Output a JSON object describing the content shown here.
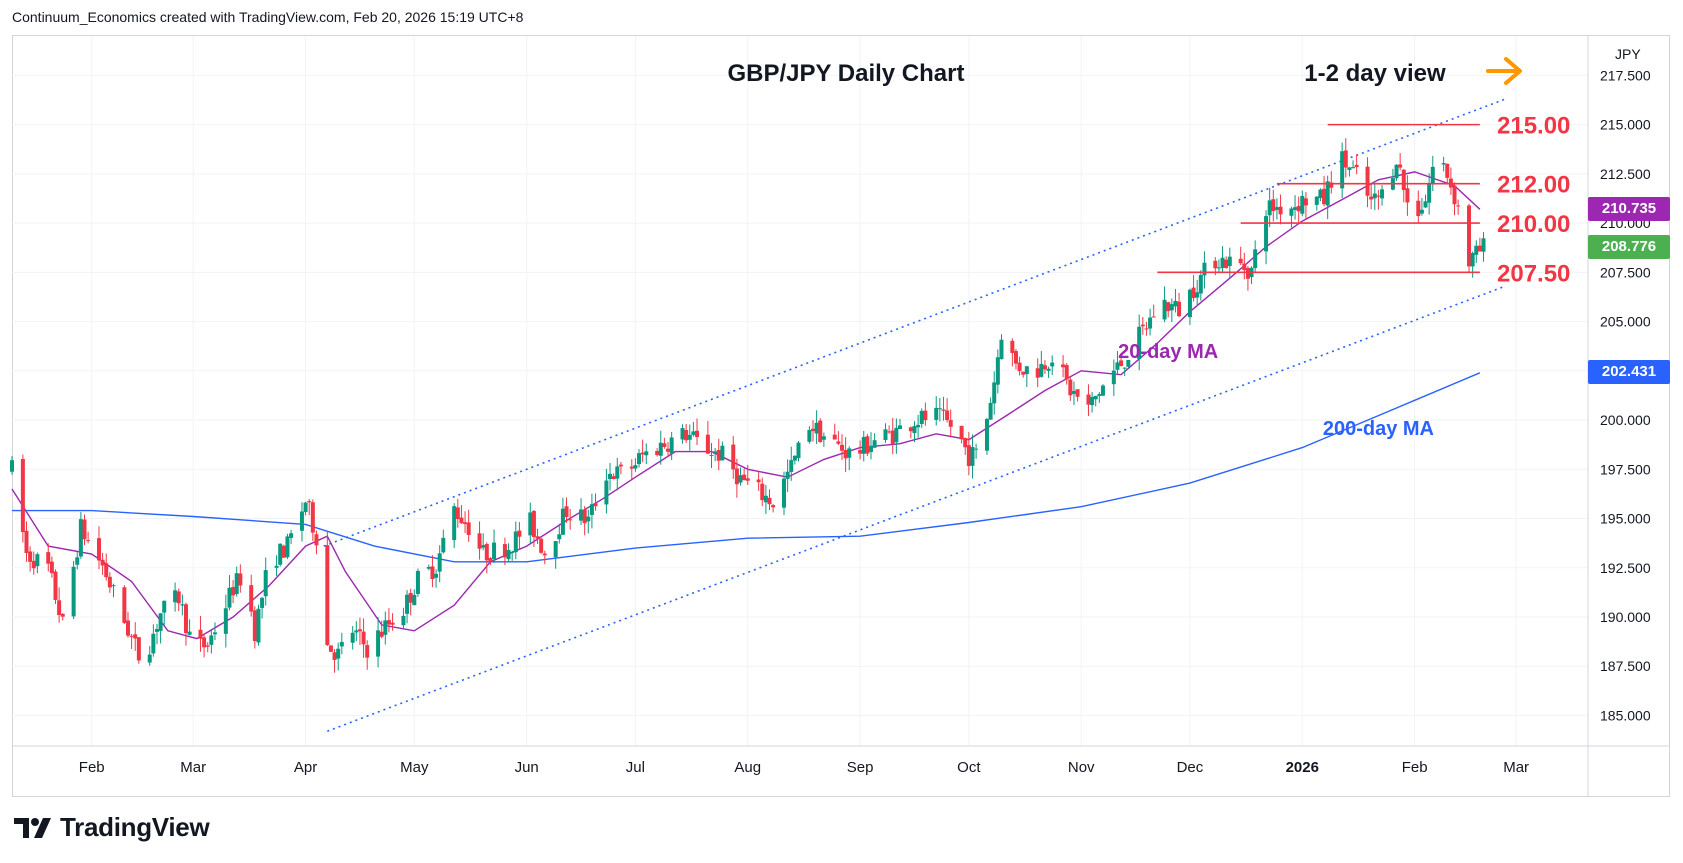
{
  "header": {
    "text": "Continuum_Economics created with TradingView.com, Feb 20, 2026 15:19 UTC+8"
  },
  "brand": {
    "name": "TradingView"
  },
  "currency": "JPY",
  "colors": {
    "up": "#089981",
    "down": "#f23645",
    "ma20": "#9c27b0",
    "ma200": "#2962ff",
    "level": "#f23645",
    "channel": "#2962ff",
    "arrow": "#ff9800",
    "last_price": "#4caf50"
  },
  "chart_data": {
    "type": "candlestick",
    "title": "GBP/JPY Daily Chart",
    "view_label": "1-2 day view",
    "x_ticks": [
      "Feb",
      "Mar",
      "Apr",
      "May",
      "Jun",
      "Jul",
      "Aug",
      "Sep",
      "Oct",
      "Nov",
      "Dec",
      "2026",
      "Feb",
      "Mar"
    ],
    "y_ticks": [
      "185.000",
      "187.500",
      "190.000",
      "192.500",
      "195.000",
      "197.500",
      "200.000",
      "202.500",
      "205.000",
      "207.500",
      "210.000",
      "212.500",
      "215.000",
      "217.500"
    ],
    "y_range": [
      183.5,
      219.5
    ],
    "x_range": [
      "2025-01-10",
      "2026-03-20"
    ],
    "levels": [
      {
        "label": "215.00",
        "value": 215.0,
        "from": "2026-01-08",
        "to": "2026-02-19"
      },
      {
        "label": "212.00",
        "value": 212.0,
        "from": "2025-12-25",
        "to": "2026-02-19"
      },
      {
        "label": "210.00",
        "value": 210.0,
        "from": "2025-12-15",
        "to": "2026-02-19"
      },
      {
        "label": "207.50",
        "value": 207.5,
        "from": "2025-11-22",
        "to": "2026-02-19"
      }
    ],
    "channel": {
      "upper": [
        [
          "2025-04-06",
          193.6
        ],
        [
          "2026-02-26",
          216.3
        ]
      ],
      "lower": [
        [
          "2025-04-07",
          184.2
        ],
        [
          "2026-02-26",
          206.8
        ]
      ]
    },
    "price_labels": [
      {
        "name": "20-day MA value",
        "value": "210.735",
        "y": 210.735
      },
      {
        "name": "last price",
        "value": "208.776",
        "y": 208.776
      },
      {
        "name": "200-day MA value",
        "value": "202.431",
        "y": 202.431
      }
    ],
    "annotations": [
      {
        "text": "20-day MA",
        "date": "2025-11-25",
        "y": 203.5
      },
      {
        "text": "200-day MA",
        "date": "2026-01-22",
        "y": 199.6
      }
    ],
    "series": [
      {
        "name": "20-day MA",
        "points": [
          [
            "2025-01-10",
            196.5
          ],
          [
            "2025-01-20",
            193.6
          ],
          [
            "2025-02-01",
            193.2
          ],
          [
            "2025-02-12",
            191.8
          ],
          [
            "2025-02-22",
            189.3
          ],
          [
            "2025-03-02",
            188.9
          ],
          [
            "2025-03-12",
            190.0
          ],
          [
            "2025-03-22",
            191.6
          ],
          [
            "2025-04-01",
            193.6
          ],
          [
            "2025-04-07",
            194.1
          ],
          [
            "2025-04-12",
            192.3
          ],
          [
            "2025-04-22",
            189.6
          ],
          [
            "2025-05-01",
            189.3
          ],
          [
            "2025-05-12",
            190.6
          ],
          [
            "2025-05-22",
            192.8
          ],
          [
            "2025-06-01",
            193.6
          ],
          [
            "2025-06-12",
            194.9
          ],
          [
            "2025-06-22",
            196.0
          ],
          [
            "2025-07-01",
            197.1
          ],
          [
            "2025-07-12",
            198.4
          ],
          [
            "2025-07-22",
            198.4
          ],
          [
            "2025-08-01",
            197.5
          ],
          [
            "2025-08-12",
            197.1
          ],
          [
            "2025-08-22",
            198.0
          ],
          [
            "2025-09-01",
            198.6
          ],
          [
            "2025-09-12",
            198.8
          ],
          [
            "2025-09-22",
            199.3
          ],
          [
            "2025-10-01",
            199.0
          ],
          [
            "2025-10-12",
            200.3
          ],
          [
            "2025-10-22",
            201.5
          ],
          [
            "2025-11-01",
            202.5
          ],
          [
            "2025-11-12",
            202.3
          ],
          [
            "2025-11-22",
            203.9
          ],
          [
            "2025-12-01",
            205.5
          ],
          [
            "2025-12-12",
            207.2
          ],
          [
            "2025-12-22",
            208.8
          ],
          [
            "2026-01-01",
            210.1
          ],
          [
            "2026-01-12",
            211.2
          ],
          [
            "2026-01-22",
            212.2
          ],
          [
            "2026-02-01",
            212.6
          ],
          [
            "2026-02-12",
            211.9
          ],
          [
            "2026-02-19",
            210.7
          ]
        ]
      },
      {
        "name": "200-day MA",
        "points": [
          [
            "2025-01-10",
            195.4
          ],
          [
            "2025-02-01",
            195.4
          ],
          [
            "2025-03-01",
            195.1
          ],
          [
            "2025-04-01",
            194.7
          ],
          [
            "2025-04-20",
            193.6
          ],
          [
            "2025-05-12",
            192.8
          ],
          [
            "2025-06-01",
            192.8
          ],
          [
            "2025-07-01",
            193.5
          ],
          [
            "2025-08-01",
            194.0
          ],
          [
            "2025-09-01",
            194.1
          ],
          [
            "2025-10-01",
            194.8
          ],
          [
            "2025-11-01",
            195.6
          ],
          [
            "2025-12-01",
            196.8
          ],
          [
            "2026-01-01",
            198.6
          ],
          [
            "2026-02-01",
            201.0
          ],
          [
            "2026-02-19",
            202.4
          ]
        ]
      }
    ],
    "ohlc_path": [
      [
        "2025-01-10",
        197.5
      ],
      [
        "2025-01-14",
        193.2
      ],
      [
        "2025-01-20",
        192.5
      ],
      [
        "2025-01-24",
        189.6
      ],
      [
        "2025-01-29",
        194.5
      ],
      [
        "2025-02-04",
        192.6
      ],
      [
        "2025-02-10",
        189.8
      ],
      [
        "2025-02-15",
        187.6
      ],
      [
        "2025-02-20",
        190.2
      ],
      [
        "2025-02-25",
        191.0
      ],
      [
        "2025-03-01",
        188.4
      ],
      [
        "2025-03-05",
        188.6
      ],
      [
        "2025-03-08",
        189.8
      ],
      [
        "2025-03-12",
        191.5
      ],
      [
        "2025-03-15",
        192.2
      ],
      [
        "2025-03-18",
        189.3
      ],
      [
        "2025-03-22",
        192.8
      ],
      [
        "2025-03-27",
        193.6
      ],
      [
        "2025-04-01",
        195.9
      ],
      [
        "2025-04-05",
        193.5
      ],
      [
        "2025-04-07",
        188.6
      ],
      [
        "2025-04-10",
        188.1
      ],
      [
        "2025-04-14",
        189.3
      ],
      [
        "2025-04-18",
        188.4
      ],
      [
        "2025-04-23",
        189.5
      ],
      [
        "2025-04-28",
        190.4
      ],
      [
        "2025-05-02",
        191.9
      ],
      [
        "2025-05-07",
        192.6
      ],
      [
        "2025-05-12",
        195.5
      ],
      [
        "2025-05-16",
        194.6
      ],
      [
        "2025-05-20",
        193.2
      ],
      [
        "2025-05-27",
        193.6
      ],
      [
        "2025-06-02",
        194.8
      ],
      [
        "2025-06-06",
        193.3
      ],
      [
        "2025-06-12",
        195.4
      ],
      [
        "2025-06-18",
        194.9
      ],
      [
        "2025-06-23",
        197.3
      ],
      [
        "2025-06-28",
        197.3
      ],
      [
        "2025-07-03",
        198.2
      ],
      [
        "2025-07-09",
        198.8
      ],
      [
        "2025-07-15",
        199.3
      ],
      [
        "2025-07-20",
        198.6
      ],
      [
        "2025-07-25",
        198.2
      ],
      [
        "2025-07-30",
        197.0
      ],
      [
        "2025-08-03",
        196.5
      ],
      [
        "2025-08-08",
        195.8
      ],
      [
        "2025-08-13",
        197.6
      ],
      [
        "2025-08-18",
        199.8
      ],
      [
        "2025-08-24",
        198.9
      ],
      [
        "2025-08-30",
        198.2
      ],
      [
        "2025-09-05",
        199.0
      ],
      [
        "2025-09-10",
        199.3
      ],
      [
        "2025-09-16",
        200.0
      ],
      [
        "2025-09-22",
        200.2
      ],
      [
        "2025-09-27",
        199.6
      ],
      [
        "2025-10-01",
        198.2
      ],
      [
        "2025-10-04",
        198.3
      ],
      [
        "2025-10-08",
        202.0
      ],
      [
        "2025-10-10",
        204.5
      ],
      [
        "2025-10-14",
        202.8
      ],
      [
        "2025-10-19",
        202.4
      ],
      [
        "2025-10-24",
        203.3
      ],
      [
        "2025-10-29",
        201.5
      ],
      [
        "2025-11-03",
        200.6
      ],
      [
        "2025-11-08",
        202.0
      ],
      [
        "2025-11-13",
        203.1
      ],
      [
        "2025-11-18",
        204.5
      ],
      [
        "2025-11-23",
        206.0
      ],
      [
        "2025-11-28",
        205.6
      ],
      [
        "2025-12-03",
        207.0
      ],
      [
        "2025-12-08",
        208.2
      ],
      [
        "2025-12-13",
        208.0
      ],
      [
        "2025-12-18",
        207.6
      ],
      [
        "2025-12-22",
        210.8
      ],
      [
        "2025-12-28",
        210.8
      ],
      [
        "2026-01-02",
        211.2
      ],
      [
        "2026-01-07",
        211.2
      ],
      [
        "2026-01-11",
        213.4
      ],
      [
        "2026-01-16",
        212.4
      ],
      [
        "2026-01-20",
        211.0
      ],
      [
        "2026-01-24",
        211.6
      ],
      [
        "2026-01-27",
        213.4
      ],
      [
        "2026-01-31",
        210.2
      ],
      [
        "2026-02-04",
        211.2
      ],
      [
        "2026-02-07",
        213.6
      ],
      [
        "2026-02-10",
        212.5
      ],
      [
        "2026-02-13",
        210.8
      ],
      [
        "2026-02-16",
        208.0
      ],
      [
        "2026-02-19",
        208.6
      ],
      [
        "2026-02-20",
        208.776
      ]
    ]
  }
}
